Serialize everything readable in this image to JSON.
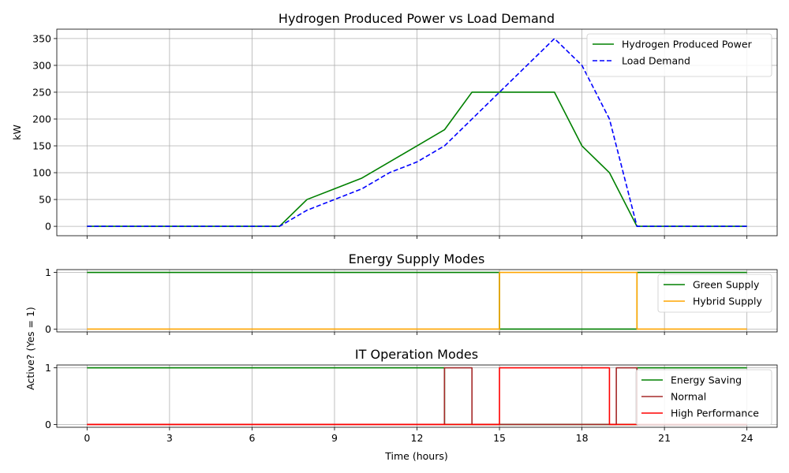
{
  "chart_data": [
    {
      "type": "line",
      "title": "Hydrogen Produced Power vs Load Demand",
      "xlabel": "",
      "ylabel": "kW",
      "xlim": [
        -1.1,
        25.1
      ],
      "ylim": [
        -17.5,
        367.5
      ],
      "xticks": [
        0,
        3,
        6,
        9,
        12,
        15,
        18,
        21,
        24
      ],
      "xtick_labels": [
        "",
        "",
        "",
        "",
        "",
        "",
        "",
        "",
        ""
      ],
      "yticks": [
        0,
        50,
        100,
        150,
        200,
        250,
        300,
        350
      ],
      "ytick_labels": [
        "0",
        "50",
        "100",
        "150",
        "200",
        "250",
        "300",
        "350"
      ],
      "grid": true,
      "legend": "upper-right",
      "series": [
        {
          "name": "Hydrogen Produced Power",
          "color": "#008000",
          "dash": "solid",
          "x": [
            0,
            1,
            2,
            3,
            4,
            5,
            6,
            7,
            8,
            9,
            10,
            11,
            12,
            13,
            14,
            15,
            16,
            17,
            18,
            19,
            20,
            21,
            22,
            23,
            24
          ],
          "y": [
            0,
            0,
            0,
            0,
            0,
            0,
            0,
            0,
            50,
            70,
            90,
            120,
            150,
            180,
            250,
            250,
            250,
            250,
            150,
            100,
            0,
            0,
            0,
            0,
            0
          ]
        },
        {
          "name": "Load Demand",
          "color": "#0000ff",
          "dash": "dashed",
          "x": [
            0,
            1,
            2,
            3,
            4,
            5,
            6,
            7,
            8,
            9,
            10,
            11,
            12,
            13,
            14,
            15,
            16,
            17,
            18,
            19,
            20,
            21,
            22,
            23,
            24
          ],
          "y": [
            0,
            0,
            0,
            0,
            0,
            0,
            0,
            0,
            30,
            50,
            70,
            100,
            120,
            150,
            200,
            250,
            300,
            350,
            300,
            200,
            0,
            0,
            0,
            0,
            0
          ]
        }
      ]
    },
    {
      "type": "line",
      "title": "Energy Supply Modes",
      "xlabel": "",
      "ylabel": "",
      "xlim": [
        -1.1,
        25.1
      ],
      "ylim": [
        -0.05,
        1.05
      ],
      "xticks": [
        0,
        3,
        6,
        9,
        12,
        15,
        18,
        21,
        24
      ],
      "xtick_labels": [
        "",
        "",
        "",
        "",
        "",
        "",
        "",
        "",
        ""
      ],
      "yticks": [
        0,
        1
      ],
      "ytick_labels": [
        "0",
        "1"
      ],
      "grid": true,
      "legend": "upper-right",
      "series": [
        {
          "name": "Green Supply",
          "color": "#008000",
          "dash": "solid",
          "x": [
            0,
            15,
            15,
            20,
            20,
            24
          ],
          "y": [
            1,
            1,
            0,
            0,
            1,
            1
          ]
        },
        {
          "name": "Hybrid Supply",
          "color": "#ffa500",
          "dash": "solid",
          "x": [
            0,
            15,
            15,
            20,
            20,
            24
          ],
          "y": [
            0,
            0,
            1,
            1,
            0,
            0
          ]
        }
      ]
    },
    {
      "type": "line",
      "title": "IT Operation Modes",
      "xlabel": "Time (hours)",
      "ylabel": "",
      "xlim": [
        -1.1,
        25.1
      ],
      "ylim": [
        -0.05,
        1.05
      ],
      "xticks": [
        0,
        3,
        6,
        9,
        12,
        15,
        18,
        21,
        24
      ],
      "xtick_labels": [
        "0",
        "3",
        "6",
        "9",
        "12",
        "15",
        "18",
        "21",
        "24"
      ],
      "yticks": [
        0,
        1
      ],
      "ytick_labels": [
        "0",
        "1"
      ],
      "grid": true,
      "legend": "upper-right",
      "series": [
        {
          "name": "Energy Saving",
          "color": "#008000",
          "dash": "solid",
          "x": [
            0,
            13,
            13,
            20,
            20,
            24
          ],
          "y": [
            1,
            1,
            0,
            0,
            1,
            1
          ]
        },
        {
          "name": "Normal",
          "color": "#a52a2a",
          "dash": "solid",
          "x": [
            0,
            13,
            13,
            14,
            14,
            19.25,
            19.25,
            20,
            20,
            24
          ],
          "y": [
            0,
            0,
            1,
            1,
            0,
            0,
            1,
            1,
            0,
            0
          ]
        },
        {
          "name": "High Performance",
          "color": "#ff0000",
          "dash": "solid",
          "x": [
            0,
            15,
            15,
            19,
            19,
            24
          ],
          "y": [
            0,
            0,
            1,
            1,
            0,
            0
          ]
        }
      ]
    }
  ],
  "shared_ylabel": "Active? (Yes = 1)"
}
